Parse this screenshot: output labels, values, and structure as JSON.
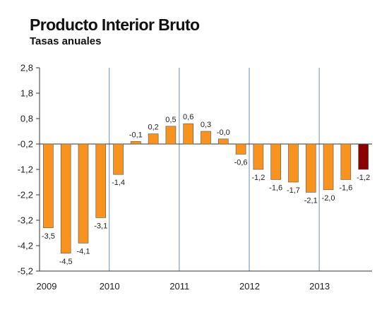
{
  "chart_data": {
    "type": "bar",
    "title": "Producto Interior Bruto",
    "subtitle": "Tasas anuales",
    "xlabel": "",
    "ylabel": "",
    "ylim": [
      -5.2,
      2.8
    ],
    "y_ticks": [
      "2,8",
      "1,8",
      "0,8",
      "-0,2",
      "-1,2",
      "-2,2",
      "-3,2",
      "-4,2",
      "-5,2"
    ],
    "y_tick_values": [
      2.8,
      1.8,
      0.8,
      -0.2,
      -1.2,
      -2.2,
      -3.2,
      -4.2,
      -5.2
    ],
    "baseline": -0.2,
    "year_labels": [
      "2009",
      "2010",
      "2011",
      "2012",
      "2013"
    ],
    "values": [
      -3.5,
      -4.5,
      -4.1,
      -3.1,
      -1.4,
      -0.1,
      0.2,
      0.5,
      0.6,
      0.3,
      -0.0,
      -0.6,
      -1.2,
      -1.6,
      -1.7,
      -2.1,
      -2.0,
      -1.6,
      -1.2
    ],
    "labels": [
      "-3,5",
      "-4,5",
      "-4,1",
      "-3,1",
      "-1,4",
      "-0,1",
      "0,2",
      "0,5",
      "0,6",
      "0,3",
      "-0,0",
      "-0,6",
      "-1,2",
      "-1,6",
      "-1,7",
      "-2,1",
      "-2,0",
      "-1,6",
      "-1,2"
    ],
    "shown_labels": [
      true,
      true,
      true,
      true,
      true,
      true,
      true,
      true,
      true,
      true,
      true,
      true,
      true,
      true,
      true,
      true,
      true,
      true,
      true
    ],
    "colors": {
      "bar": "#f7931e",
      "highlight": "#8b0000",
      "grid": "#8fa8c8",
      "axis": "#333333"
    },
    "highlight_index": 18,
    "grid": true,
    "legend": "none"
  }
}
